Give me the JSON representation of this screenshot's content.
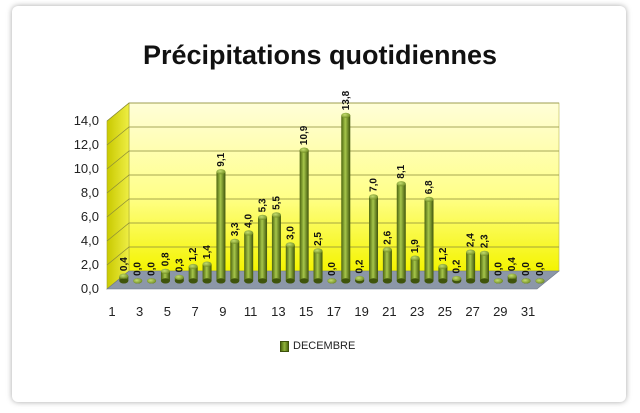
{
  "chart_data": {
    "type": "bar",
    "title": "Précipitations quotidiennes",
    "xlabel": "",
    "ylabel": "",
    "ylim": [
      0,
      14
    ],
    "yticks": [
      "0,0",
      "2,0",
      "4,0",
      "6,0",
      "8,0",
      "10,0",
      "12,0",
      "14,0"
    ],
    "x_tick_labels": [
      "1",
      "3",
      "5",
      "7",
      "9",
      "11",
      "13",
      "15",
      "17",
      "19",
      "21",
      "23",
      "25",
      "27",
      "29",
      "31"
    ],
    "categories": [
      "1",
      "2",
      "3",
      "4",
      "5",
      "6",
      "7",
      "8",
      "9",
      "10",
      "11",
      "12",
      "13",
      "14",
      "15",
      "16",
      "17",
      "18",
      "19",
      "20",
      "21",
      "22",
      "23",
      "24",
      "25",
      "26",
      "27",
      "28",
      "29",
      "30",
      "31"
    ],
    "series": [
      {
        "name": "DECEMBRE",
        "values": [
          0.4,
          0.0,
          0.0,
          0.8,
          0.3,
          1.2,
          1.4,
          9.1,
          3.3,
          4.0,
          5.3,
          5.5,
          3.0,
          10.9,
          2.5,
          0.0,
          13.8,
          0.2,
          7.0,
          2.6,
          8.1,
          1.9,
          6.8,
          1.2,
          0.2,
          2.4,
          2.3,
          0.0,
          0.4,
          0.0,
          0.0
        ],
        "labels": [
          "0,4",
          "0,0",
          "0,0",
          "0,8",
          "0,3",
          "1,2",
          "1,4",
          "9,1",
          "3,3",
          "4,0",
          "5,3",
          "5,5",
          "3,0",
          "10,9",
          "2,5",
          "0,0",
          "13,8",
          "0,2",
          "7,0",
          "2,6",
          "8,1",
          "1,9",
          "6,8",
          "1,2",
          "0,2",
          "2,4",
          "2,3",
          "0,0",
          "0,4",
          "0,0",
          "0,0"
        ]
      }
    ],
    "grid": true,
    "legend_position": "bottom",
    "colors": {
      "bar": "#7f9f2a",
      "bar_dark": "#4c640f",
      "wall": "#ffff66",
      "floor": "#8c97a8"
    }
  }
}
